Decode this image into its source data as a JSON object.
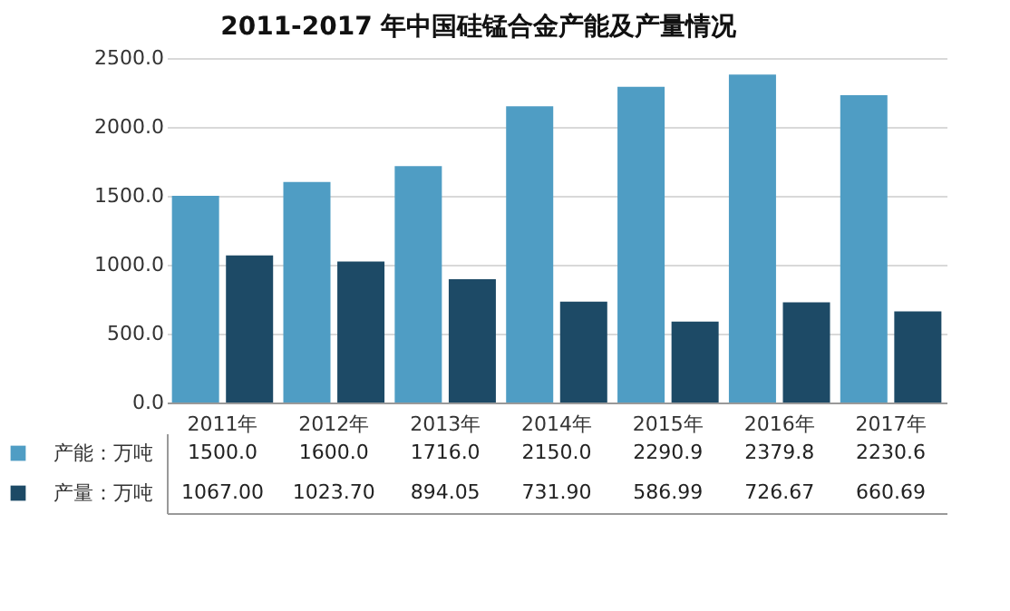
{
  "chart_data": {
    "type": "bar",
    "title": "2011-2017 年中国硅锰合金产能及产量情况",
    "categories": [
      "2011年",
      "2012年",
      "2013年",
      "2014年",
      "2015年",
      "2016年",
      "2017年"
    ],
    "series": [
      {
        "name": "产能：万吨",
        "color": "#4f9dc4",
        "values": [
          1500.0,
          1600.0,
          1716.0,
          2150.0,
          2290.9,
          2379.8,
          2230.6
        ],
        "value_labels": [
          "1500.0",
          "1600.0",
          "1716.0",
          "2150.0",
          "2290.9",
          "2379.8",
          "2230.6"
        ]
      },
      {
        "name": "产量：万吨",
        "color": "#1d4a66",
        "values": [
          1067.0,
          1023.7,
          894.05,
          731.9,
          586.99,
          726.67,
          660.69
        ],
        "value_labels": [
          "1067.00",
          "1023.70",
          "894.05",
          "731.90",
          "586.99",
          "726.67",
          "660.69"
        ]
      }
    ],
    "ylim": [
      0,
      2500
    ],
    "yticks": [
      {
        "value": 0,
        "label": "0.0"
      },
      {
        "value": 500,
        "label": "500.0"
      },
      {
        "value": 1000,
        "label": "1000.0"
      },
      {
        "value": 1500,
        "label": "1500.0"
      },
      {
        "value": 2000,
        "label": "2000.0"
      },
      {
        "value": 2500,
        "label": "2500.0"
      }
    ],
    "grid": "y",
    "legend": "bottom"
  }
}
